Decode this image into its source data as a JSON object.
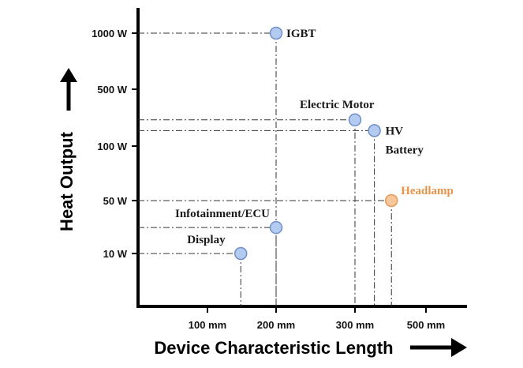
{
  "chart_data": {
    "type": "scatter",
    "xlabel": "Device Characteristic Length",
    "ylabel": "Heat Output",
    "labels": [
      "IGBT",
      "Electric Motor",
      "HV Battery",
      "Headlamp",
      "Infotainment/ECU",
      "Display"
    ],
    "x": [
      200,
      300,
      345,
      390,
      200,
      140
    ],
    "values": [
      1000,
      210,
      155,
      50,
      22,
      10
    ],
    "colors": [
      "#b3cbf0",
      "#b3cbf0",
      "#b3cbf0",
      "#f7c79a",
      "#b3cbf0",
      "#b3cbf0"
    ],
    "label_colors": [
      "#1a1a1a",
      "#1a1a1a",
      "#1a1a1a",
      "#e8934a",
      "#1a1a1a",
      "#1a1a1a"
    ],
    "xticks": [
      {
        "value": 100,
        "label": "100 mm"
      },
      {
        "value": 200,
        "label": "200 mm"
      },
      {
        "value": 300,
        "label": "300 mm"
      },
      {
        "value": 500,
        "label": "500 mm"
      }
    ],
    "yticks": [
      {
        "value": 10,
        "label": "10 W"
      },
      {
        "value": 50,
        "label": "50 W"
      },
      {
        "value": 100,
        "label": "100 W"
      },
      {
        "value": 500,
        "label": "500 W"
      },
      {
        "value": 1000,
        "label": "1000 W"
      }
    ]
  }
}
